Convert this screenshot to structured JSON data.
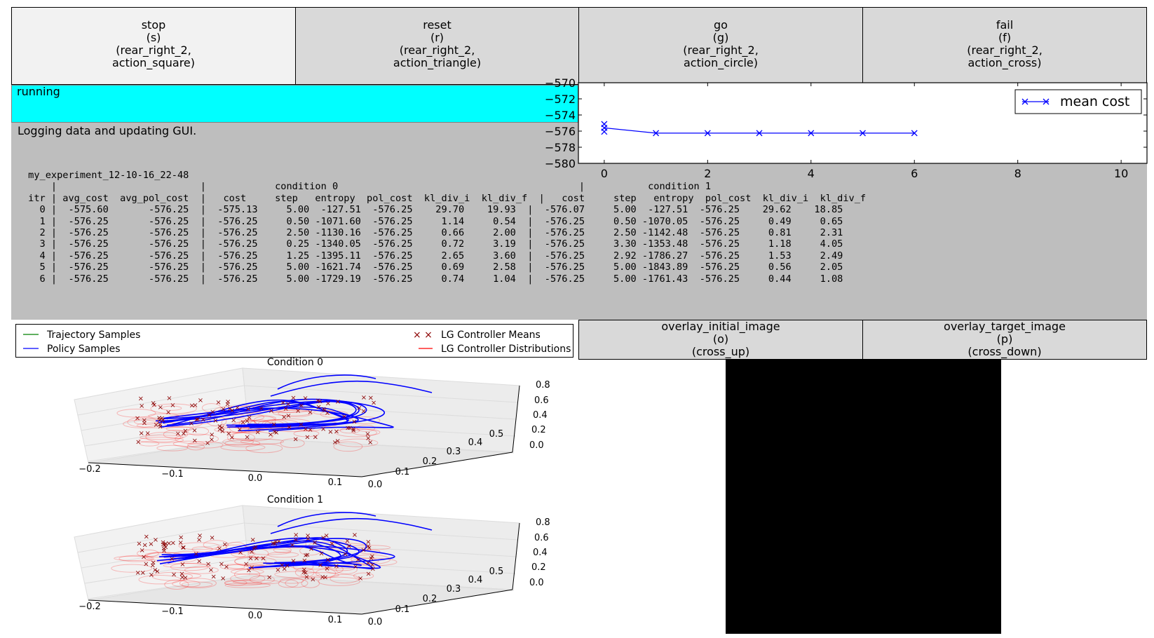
{
  "buttons": {
    "stop": "stop\n(s)\n(rear_right_2,\naction_square)",
    "reset": "reset\n(r)\n(rear_right_2,\naction_triangle)",
    "go": "go\n(g)\n(rear_right_2,\naction_circle)",
    "fail": "fail\n(f)\n(rear_right_2,\naction_cross)",
    "overlay_initial": "overlay_initial_image\n(o)\n(cross_up)",
    "overlay_target": "overlay_target_image\n(p)\n(cross_down)"
  },
  "status": {
    "text": "running",
    "color": "#00ffff"
  },
  "log": {
    "message": "Logging data and updating GUI.",
    "table": " my_experiment_12-10-16_22-48\n     |                         |            condition 0                                          |           condition 1\n itr | avg_cost  avg_pol_cost  |   cost     step   entropy  pol_cost  kl_div_i  kl_div_f  |   cost     step   entropy  pol_cost  kl_div_i  kl_div_f\n   0 |  -575.60       -576.25  |  -575.13     5.00  -127.51  -576.25    29.70    19.93  |  -576.07     5.00  -127.51  -576.25    29.62    18.85\n   1 |  -576.25       -576.25  |  -576.25     0.50 -1071.60  -576.25     1.14     0.54  |  -576.25     0.50 -1070.05  -576.25     0.49     0.65\n   2 |  -576.25       -576.25  |  -576.25     2.50 -1130.16  -576.25     0.66     2.00  |  -576.25     2.50 -1142.48  -576.25     0.81     2.31\n   3 |  -576.25       -576.25  |  -576.25     0.25 -1340.05  -576.25     0.72     3.19  |  -576.25     3.30 -1353.48  -576.25     1.18     4.05\n   4 |  -576.25       -576.25  |  -576.25     1.25 -1395.11  -576.25     2.65     3.60  |  -576.25     2.92 -1786.27  -576.25     1.53     2.49\n   5 |  -576.25       -576.25  |  -576.25     5.00 -1621.74  -576.25     0.69     2.58  |  -576.25     5.00 -1843.89  -576.25     0.56     2.05\n   6 |  -576.25       -576.25  |  -576.25     5.00 -1729.19  -576.25     0.74     1.04  |  -576.25     5.00 -1761.43  -576.25     0.44     1.08"
  },
  "chart_data": {
    "type": "line",
    "x": [
      0,
      0,
      0,
      1,
      2,
      3,
      4,
      5,
      6
    ],
    "series": [
      {
        "name": "mean cost",
        "x": [
          0,
          1,
          2,
          3,
          4,
          5,
          6
        ],
        "values": [
          -575.6,
          -576.25,
          -576.25,
          -576.25,
          -576.25,
          -576.25,
          -576.25
        ],
        "color": "#0000ff"
      }
    ],
    "scatter_extra": [
      [
        0,
        -575.13
      ],
      [
        0,
        -576.07
      ]
    ],
    "xlim": [
      -0.5,
      10.5
    ],
    "ylim": [
      -580,
      -570
    ],
    "xticks": [
      "0",
      "2",
      "4",
      "6",
      "8",
      "10"
    ],
    "yticks": [
      "−570",
      "−572",
      "−574",
      "−576",
      "−578",
      "−580"
    ],
    "legend": "top-right"
  },
  "legend3d": {
    "traj": "Trajectory Samples",
    "policy": "Policy Samples",
    "means": "LG Controller Means",
    "dists": "LG Controller Distributions",
    "traj_color": "#008000",
    "policy_color": "#0000ff",
    "means_color": "#8b0000",
    "dists_color": "#ff0000"
  },
  "plots3d": [
    {
      "title": "Condition 0",
      "x_ticks": [
        "−0.2",
        "−0.1",
        "0.0",
        "0.1"
      ],
      "y_ticks": [
        "0.0",
        "0.1",
        "0.2",
        "0.3",
        "0.4",
        "0.5"
      ],
      "z_ticks": [
        "0.0",
        "0.2",
        "0.4",
        "0.6",
        "0.8"
      ]
    },
    {
      "title": "Condition 1",
      "x_ticks": [
        "−0.2",
        "−0.1",
        "0.0",
        "0.1"
      ],
      "y_ticks": [
        "0.0",
        "0.1",
        "0.2",
        "0.3",
        "0.4",
        "0.5"
      ],
      "z_ticks": [
        "0.0",
        "0.2",
        "0.4",
        "0.6",
        "0.8"
      ]
    }
  ]
}
